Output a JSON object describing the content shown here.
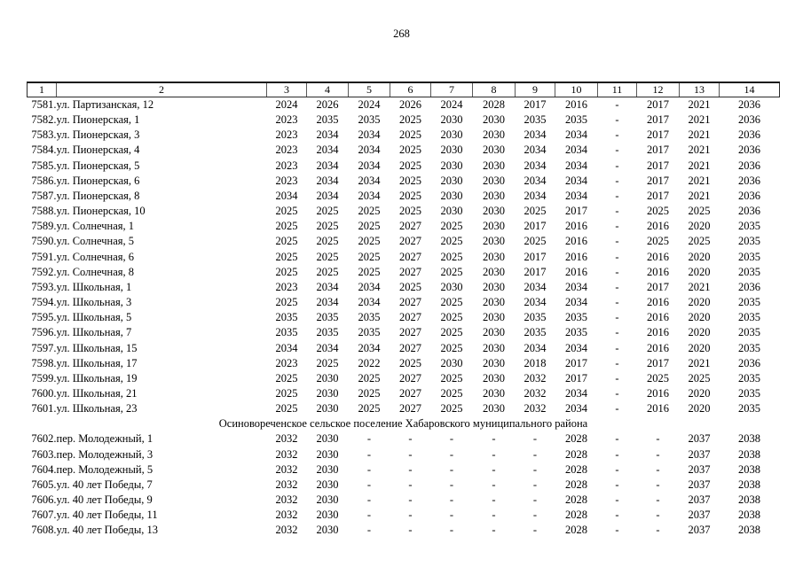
{
  "page_number": "268",
  "table": {
    "header": [
      "1",
      "2",
      "3",
      "4",
      "5",
      "6",
      "7",
      "8",
      "9",
      "10",
      "11",
      "12",
      "13",
      "14"
    ],
    "rows": [
      {
        "num": "7581.",
        "address": "ул. Партизанская, 12",
        "values": [
          "2024",
          "2026",
          "2024",
          "2026",
          "2024",
          "2028",
          "2017",
          "2016",
          "-",
          "2017",
          "2021",
          "2036"
        ]
      },
      {
        "num": "7582.",
        "address": "ул. Пионерская, 1",
        "values": [
          "2023",
          "2035",
          "2035",
          "2025",
          "2030",
          "2030",
          "2035",
          "2035",
          "-",
          "2017",
          "2021",
          "2036"
        ]
      },
      {
        "num": "7583.",
        "address": "ул. Пионерская, 3",
        "values": [
          "2023",
          "2034",
          "2034",
          "2025",
          "2030",
          "2030",
          "2034",
          "2034",
          "-",
          "2017",
          "2021",
          "2036"
        ]
      },
      {
        "num": "7584.",
        "address": "ул. Пионерская, 4",
        "values": [
          "2023",
          "2034",
          "2034",
          "2025",
          "2030",
          "2030",
          "2034",
          "2034",
          "-",
          "2017",
          "2021",
          "2036"
        ]
      },
      {
        "num": "7585.",
        "address": "ул. Пионерская, 5",
        "values": [
          "2023",
          "2034",
          "2034",
          "2025",
          "2030",
          "2030",
          "2034",
          "2034",
          "-",
          "2017",
          "2021",
          "2036"
        ]
      },
      {
        "num": "7586.",
        "address": "ул. Пионерская, 6",
        "values": [
          "2023",
          "2034",
          "2034",
          "2025",
          "2030",
          "2030",
          "2034",
          "2034",
          "-",
          "2017",
          "2021",
          "2036"
        ]
      },
      {
        "num": "7587.",
        "address": "ул. Пионерская, 8",
        "values": [
          "2034",
          "2034",
          "2034",
          "2025",
          "2030",
          "2030",
          "2034",
          "2034",
          "-",
          "2017",
          "2021",
          "2036"
        ]
      },
      {
        "num": "7588.",
        "address": "ул. Пионерская, 10",
        "values": [
          "2025",
          "2025",
          "2025",
          "2025",
          "2030",
          "2030",
          "2025",
          "2017",
          "-",
          "2025",
          "2025",
          "2036"
        ]
      },
      {
        "num": "7589.",
        "address": "ул. Солнечная, 1",
        "values": [
          "2025",
          "2025",
          "2025",
          "2027",
          "2025",
          "2030",
          "2017",
          "2016",
          "-",
          "2016",
          "2020",
          "2035"
        ]
      },
      {
        "num": "7590.",
        "address": "ул. Солнечная, 5",
        "values": [
          "2025",
          "2025",
          "2025",
          "2027",
          "2025",
          "2030",
          "2025",
          "2016",
          "-",
          "2025",
          "2025",
          "2035"
        ]
      },
      {
        "num": "7591.",
        "address": "ул. Солнечная, 6",
        "values": [
          "2025",
          "2025",
          "2025",
          "2027",
          "2025",
          "2030",
          "2017",
          "2016",
          "-",
          "2016",
          "2020",
          "2035"
        ]
      },
      {
        "num": "7592.",
        "address": "ул. Солнечная, 8",
        "values": [
          "2025",
          "2025",
          "2025",
          "2027",
          "2025",
          "2030",
          "2017",
          "2016",
          "-",
          "2016",
          "2020",
          "2035"
        ]
      },
      {
        "num": "7593.",
        "address": "ул. Школьная, 1",
        "values": [
          "2023",
          "2034",
          "2034",
          "2025",
          "2030",
          "2030",
          "2034",
          "2034",
          "-",
          "2017",
          "2021",
          "2036"
        ]
      },
      {
        "num": "7594.",
        "address": "ул. Школьная, 3",
        "values": [
          "2025",
          "2034",
          "2034",
          "2027",
          "2025",
          "2030",
          "2034",
          "2034",
          "-",
          "2016",
          "2020",
          "2035"
        ]
      },
      {
        "num": "7595.",
        "address": "ул. Школьная, 5",
        "values": [
          "2035",
          "2035",
          "2035",
          "2027",
          "2025",
          "2030",
          "2035",
          "2035",
          "-",
          "2016",
          "2020",
          "2035"
        ]
      },
      {
        "num": "7596.",
        "address": "ул. Школьная, 7",
        "values": [
          "2035",
          "2035",
          "2035",
          "2027",
          "2025",
          "2030",
          "2035",
          "2035",
          "-",
          "2016",
          "2020",
          "2035"
        ]
      },
      {
        "num": "7597.",
        "address": "ул. Школьная, 15",
        "values": [
          "2034",
          "2034",
          "2034",
          "2027",
          "2025",
          "2030",
          "2034",
          "2034",
          "-",
          "2016",
          "2020",
          "2035"
        ]
      },
      {
        "num": "7598.",
        "address": "ул. Школьная, 17",
        "values": [
          "2023",
          "2025",
          "2022",
          "2025",
          "2030",
          "2030",
          "2018",
          "2017",
          "-",
          "2017",
          "2021",
          "2036"
        ]
      },
      {
        "num": "7599.",
        "address": "ул. Школьная, 19",
        "values": [
          "2025",
          "2030",
          "2025",
          "2027",
          "2025",
          "2030",
          "2032",
          "2017",
          "-",
          "2025",
          "2025",
          "2035"
        ]
      },
      {
        "num": "7600.",
        "address": "ул. Школьная, 21",
        "values": [
          "2025",
          "2030",
          "2025",
          "2027",
          "2025",
          "2030",
          "2032",
          "2034",
          "-",
          "2016",
          "2020",
          "2035"
        ]
      },
      {
        "num": "7601.",
        "address": "ул. Школьная, 23",
        "values": [
          "2025",
          "2030",
          "2025",
          "2027",
          "2025",
          "2030",
          "2032",
          "2034",
          "-",
          "2016",
          "2020",
          "2035"
        ]
      },
      {
        "section": "Осиновореченское сельское поселение Хабаровского муниципального района"
      },
      {
        "num": "7602.",
        "address": "пер. Молодежный, 1",
        "values": [
          "2032",
          "2030",
          "-",
          "-",
          "-",
          "-",
          "-",
          "2028",
          "-",
          "-",
          "2037",
          "2038"
        ]
      },
      {
        "num": "7603.",
        "address": "пер. Молодежный, 3",
        "values": [
          "2032",
          "2030",
          "-",
          "-",
          "-",
          "-",
          "-",
          "2028",
          "-",
          "-",
          "2037",
          "2038"
        ]
      },
      {
        "num": "7604.",
        "address": "пер. Молодежный, 5",
        "values": [
          "2032",
          "2030",
          "-",
          "-",
          "-",
          "-",
          "-",
          "2028",
          "-",
          "-",
          "2037",
          "2038"
        ]
      },
      {
        "num": "7605.",
        "address": "ул. 40 лет Победы, 7",
        "values": [
          "2032",
          "2030",
          "-",
          "-",
          "-",
          "-",
          "-",
          "2028",
          "-",
          "-",
          "2037",
          "2038"
        ]
      },
      {
        "num": "7606.",
        "address": "ул. 40 лет Победы, 9",
        "values": [
          "2032",
          "2030",
          "-",
          "-",
          "-",
          "-",
          "-",
          "2028",
          "-",
          "-",
          "2037",
          "2038"
        ]
      },
      {
        "num": "7607.",
        "address": "ул. 40 лет Победы, 11",
        "values": [
          "2032",
          "2030",
          "-",
          "-",
          "-",
          "-",
          "-",
          "2028",
          "-",
          "-",
          "2037",
          "2038"
        ]
      },
      {
        "num": "7608.",
        "address": "ул. 40 лет Победы, 13",
        "values": [
          "2032",
          "2030",
          "-",
          "-",
          "-",
          "-",
          "-",
          "2028",
          "-",
          "-",
          "2037",
          "2038"
        ]
      }
    ]
  }
}
